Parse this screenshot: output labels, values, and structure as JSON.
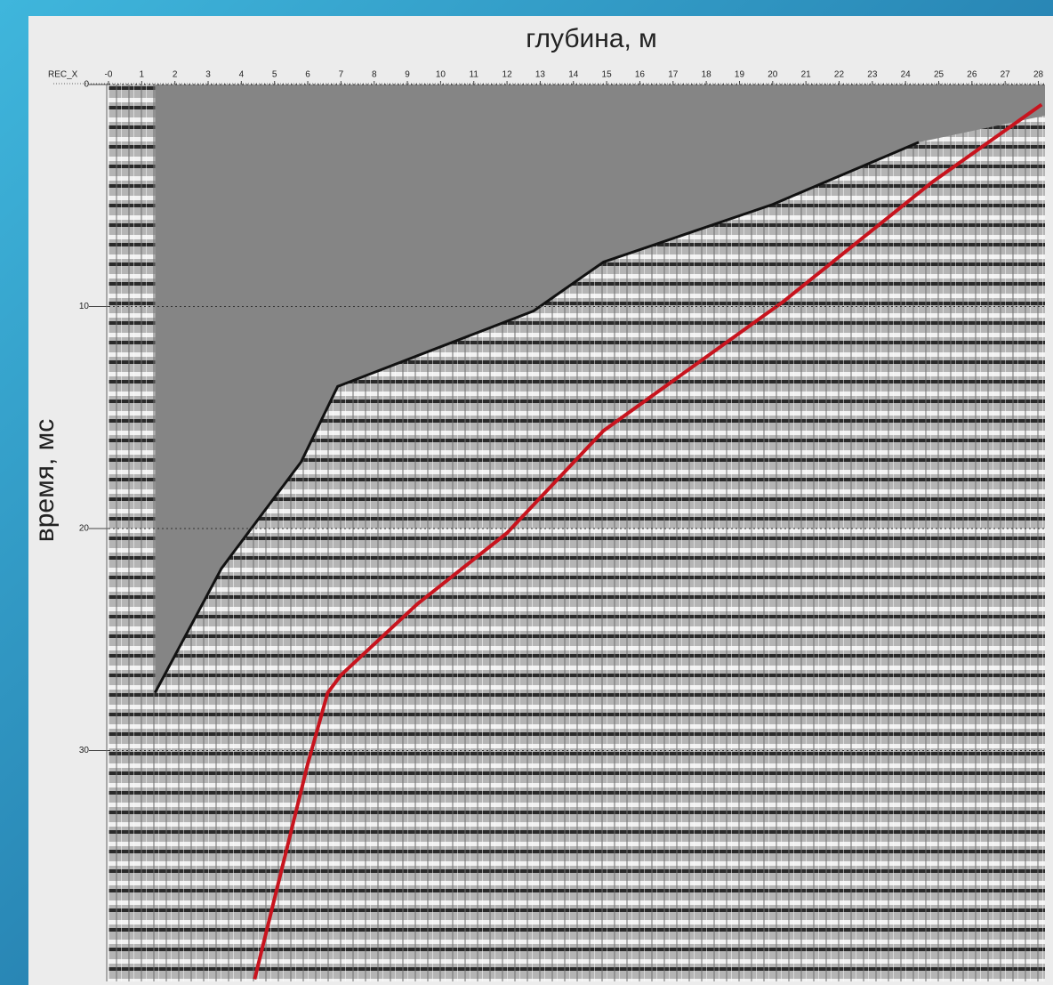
{
  "chart_data": {
    "type": "line",
    "title": "глубина, м",
    "y_label": "время, мс",
    "x_axis_label": "REC_X",
    "xlim": [
      0,
      28.2
    ],
    "ylim": [
      0,
      40.4
    ],
    "y_inverted": true,
    "xticks": [
      {
        "value": 0,
        "label": "-0"
      },
      1,
      2,
      3,
      4,
      5,
      6,
      7,
      8,
      9,
      10,
      11,
      12,
      13,
      14,
      15,
      16,
      17,
      18,
      19,
      20,
      21,
      22,
      23,
      24,
      25,
      26,
      27,
      28
    ],
    "yticks": [
      0,
      10,
      20,
      30
    ],
    "grid": true,
    "series": [
      {
        "color": "#c8141e",
        "x": [
          28.1,
          24.8,
          20.3,
          14.9,
          12.0,
          9.3,
          7.0,
          6.6,
          6.0,
          4.4
        ],
        "values": [
          0.9,
          4.4,
          9.8,
          15.6,
          20.2,
          23.4,
          26.6,
          27.4,
          30.6,
          40.3
        ]
      },
      {
        "color": "#111111",
        "x": [
          24.4,
          20.0,
          14.9,
          12.8,
          6.9,
          5.8,
          3.4,
          1.4
        ],
        "values": [
          2.6,
          5.4,
          8.0,
          10.2,
          13.6,
          17.0,
          21.8,
          27.4
        ]
      }
    ]
  }
}
